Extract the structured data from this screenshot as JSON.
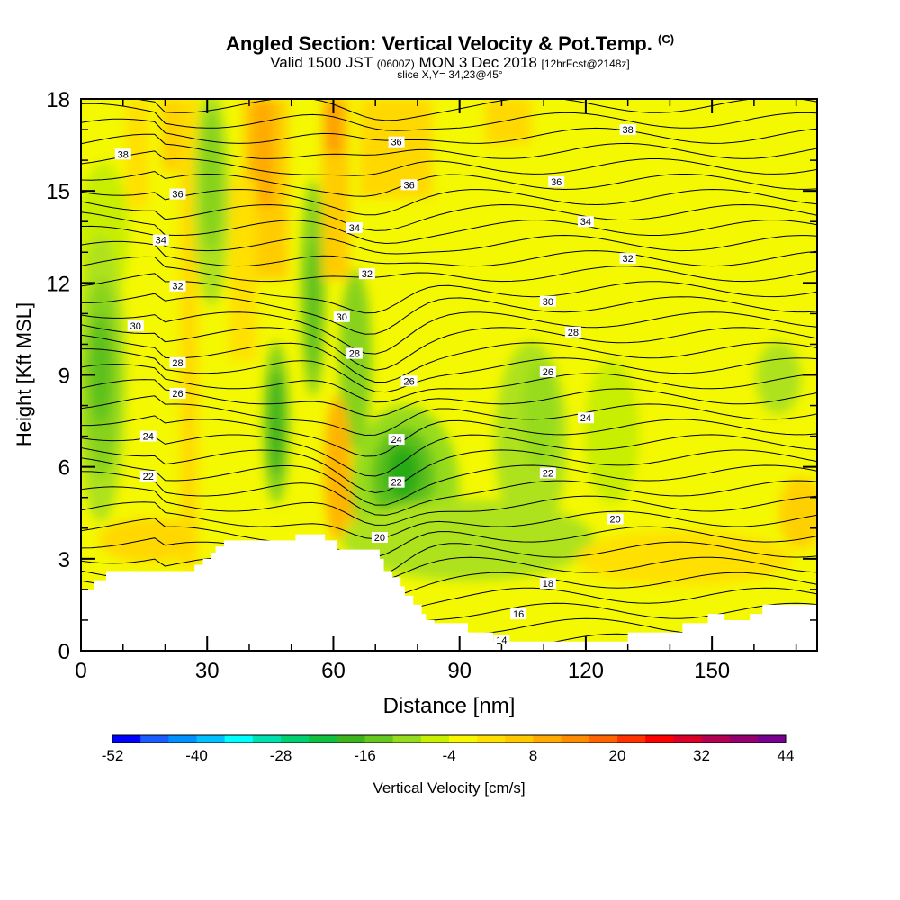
{
  "titles": {
    "main": "Angled Section: Vertical Velocity & Pot.Temp.",
    "main_units": "(C)",
    "valid_prefix": "Valid 1500 JST",
    "valid_utc": "(0600Z)",
    "valid_date": "MON 3 Dec 2018",
    "forecast": "[12hrFcst@2148z]",
    "slice": "slice X,Y= 34,23@45°"
  },
  "chart_data": {
    "type": "heatmap",
    "xlabel": "Distance [nm]",
    "ylabel": "Height [Kft MSL]",
    "xlim": [
      0,
      175
    ],
    "ylim": [
      0,
      18
    ],
    "x_ticks": [
      0,
      30,
      60,
      90,
      120,
      150
    ],
    "y_ticks": [
      0,
      3,
      6,
      9,
      12,
      15,
      18
    ],
    "colorbar": {
      "label": "Vertical Velocity [cm/s]",
      "tick_labels": [
        "-52",
        "-40",
        "-28",
        "-16",
        "-4",
        "8",
        "20",
        "32",
        "44"
      ],
      "colors": [
        "#0000ff",
        "#1a5cff",
        "#0090ff",
        "#00c0ff",
        "#00ffff",
        "#00e0b0",
        "#00d070",
        "#10c040",
        "#3cb41e",
        "#66c81e",
        "#96dc1e",
        "#c8f000",
        "#f8f800",
        "#ffe000",
        "#ffc800",
        "#ffaa00",
        "#ff8c00",
        "#ff6400",
        "#ff3200",
        "#ff0000",
        "#dc0028",
        "#b40050",
        "#96006e",
        "#780090"
      ]
    },
    "terrain_kft": [
      [
        0,
        2.0
      ],
      [
        3,
        2.0
      ],
      [
        3,
        2.3
      ],
      [
        6,
        2.3
      ],
      [
        6,
        2.6
      ],
      [
        16,
        2.6
      ],
      [
        16,
        2.6
      ],
      [
        27,
        2.6
      ],
      [
        27,
        2.8
      ],
      [
        29,
        2.8
      ],
      [
        29,
        3.0
      ],
      [
        31,
        3.0
      ],
      [
        31,
        3.2
      ],
      [
        32,
        3.2
      ],
      [
        32,
        3.4
      ],
      [
        34,
        3.4
      ],
      [
        34,
        3.6
      ],
      [
        51,
        3.6
      ],
      [
        51,
        3.8
      ],
      [
        58,
        3.8
      ],
      [
        58,
        3.6
      ],
      [
        61,
        3.6
      ],
      [
        61,
        3.3
      ],
      [
        71,
        3.3
      ],
      [
        71,
        3.0
      ],
      [
        72,
        3.0
      ],
      [
        72,
        2.6
      ],
      [
        74,
        2.6
      ],
      [
        74,
        2.4
      ],
      [
        76,
        2.4
      ],
      [
        76,
        2.1
      ],
      [
        77,
        2.1
      ],
      [
        77,
        1.8
      ],
      [
        79,
        1.8
      ],
      [
        79,
        1.5
      ],
      [
        81,
        1.5
      ],
      [
        81,
        1.2
      ],
      [
        82,
        1.2
      ],
      [
        82,
        1.0
      ],
      [
        84,
        1.0
      ],
      [
        84,
        0.9
      ],
      [
        92,
        0.9
      ],
      [
        92,
        0.6
      ],
      [
        98,
        0.6
      ],
      [
        98,
        0.3
      ],
      [
        130,
        0.3
      ],
      [
        130,
        0.6
      ],
      [
        143,
        0.6
      ],
      [
        143,
        0.9
      ],
      [
        149,
        0.9
      ],
      [
        149,
        1.2
      ],
      [
        153,
        1.2
      ],
      [
        153,
        1.0
      ],
      [
        159,
        1.0
      ],
      [
        159,
        1.2
      ],
      [
        162,
        1.2
      ],
      [
        162,
        1.5
      ],
      [
        175,
        1.5
      ]
    ],
    "theta_labels": [
      {
        "text": "38",
        "x": 10,
        "z": 16.2
      },
      {
        "text": "36",
        "x": 23,
        "z": 14.9
      },
      {
        "text": "34",
        "x": 19,
        "z": 13.4
      },
      {
        "text": "32",
        "x": 23,
        "z": 11.9
      },
      {
        "text": "30",
        "x": 13,
        "z": 10.6
      },
      {
        "text": "28",
        "x": 23,
        "z": 9.4
      },
      {
        "text": "26",
        "x": 23,
        "z": 8.4
      },
      {
        "text": "24",
        "x": 16,
        "z": 7.0
      },
      {
        "text": "22",
        "x": 16,
        "z": 5.7
      },
      {
        "text": "36",
        "x": 75,
        "z": 16.6
      },
      {
        "text": "36",
        "x": 78,
        "z": 15.2
      },
      {
        "text": "34",
        "x": 65,
        "z": 13.8
      },
      {
        "text": "32",
        "x": 68,
        "z": 12.3
      },
      {
        "text": "30",
        "x": 62,
        "z": 10.9
      },
      {
        "text": "28",
        "x": 65,
        "z": 9.7
      },
      {
        "text": "26",
        "x": 78,
        "z": 8.8
      },
      {
        "text": "24",
        "x": 75,
        "z": 6.9
      },
      {
        "text": "22",
        "x": 75,
        "z": 5.5
      },
      {
        "text": "20",
        "x": 71,
        "z": 3.7
      },
      {
        "text": "38",
        "x": 130,
        "z": 17.0
      },
      {
        "text": "36",
        "x": 113,
        "z": 15.3
      },
      {
        "text": "34",
        "x": 120,
        "z": 14.0
      },
      {
        "text": "32",
        "x": 130,
        "z": 12.8
      },
      {
        "text": "30",
        "x": 111,
        "z": 11.4
      },
      {
        "text": "28",
        "x": 117,
        "z": 10.4
      },
      {
        "text": "26",
        "x": 111,
        "z": 9.1
      },
      {
        "text": "24",
        "x": 120,
        "z": 7.6
      },
      {
        "text": "22",
        "x": 111,
        "z": 5.8
      },
      {
        "text": "20",
        "x": 127,
        "z": 4.3
      },
      {
        "text": "18",
        "x": 111,
        "z": 2.2
      },
      {
        "text": "16",
        "x": 104,
        "z": 1.2
      },
      {
        "text": "14",
        "x": 100,
        "z": 0.35
      }
    ]
  }
}
